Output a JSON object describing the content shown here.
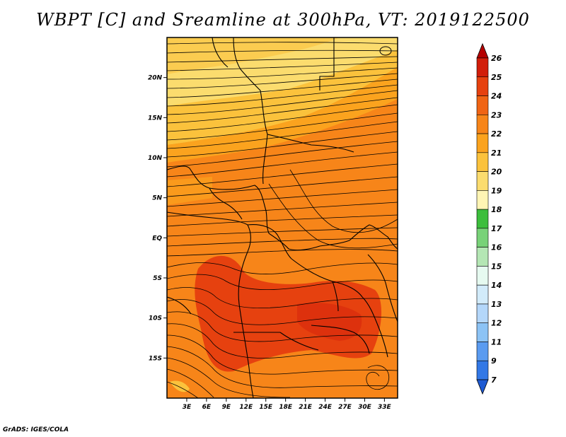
{
  "title": "WBPT [C] and Sreamline at 300hPa, VT: 2019122500",
  "footer": "GrADS: IGES/COLA",
  "map": {
    "variable": "WBPT",
    "units": "C",
    "level": "300hPa",
    "valid_time": "2019122500",
    "lat_labels": [
      "20N",
      "15N",
      "10N",
      "5N",
      "EQ",
      "5S",
      "10S",
      "15S"
    ],
    "lat_values": [
      20,
      15,
      10,
      5,
      0,
      -5,
      -10,
      -15
    ],
    "lon_labels": [
      "3E",
      "6E",
      "9E",
      "12E",
      "15E",
      "18E",
      "21E",
      "24E",
      "27E",
      "30E",
      "33E"
    ],
    "lon_values": [
      3,
      6,
      9,
      12,
      15,
      18,
      21,
      24,
      27,
      30,
      33
    ],
    "extent": {
      "lon_min": 0,
      "lon_max": 35,
      "lat_min": -20,
      "lat_max": 25
    }
  },
  "colorbar": {
    "labels": [
      "26",
      "25",
      "24",
      "23",
      "22",
      "21",
      "20",
      "19",
      "18",
      "17",
      "16",
      "15",
      "14",
      "13",
      "12",
      "11",
      "9",
      "7"
    ],
    "colors": [
      "#b40000",
      "#d21e0a",
      "#e6410f",
      "#f06414",
      "#f78519",
      "#fba31e",
      "#fbc23c",
      "#fbdc6e",
      "#fff5b4",
      "#3cbe3c",
      "#78d278",
      "#b4e6b4",
      "#e6faf0",
      "#d2ebfa",
      "#b4d7fa",
      "#8cc3f5",
      "#5a9bf0",
      "#3278e6",
      "#1e5ad2"
    ]
  }
}
